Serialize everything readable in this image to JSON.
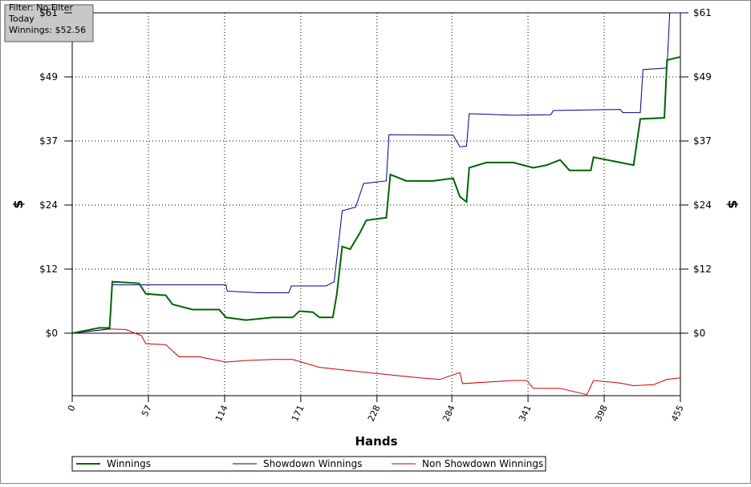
{
  "info": {
    "lines": [
      "Filter: No Filter",
      "Today",
      "Winnings: $52.56"
    ]
  },
  "chart_data": {
    "type": "line",
    "xlabel": "Hands",
    "ylabel": "$",
    "y2label": "$",
    "xlim": [
      0,
      455
    ],
    "xticks": [
      0,
      57,
      114,
      171,
      228,
      284,
      341,
      398,
      455
    ],
    "ylim": [
      -11.9,
      61
    ],
    "yticks": [
      {
        "value": 0,
        "label": "$0"
      },
      {
        "value": 12.2,
        "label": "$12"
      },
      {
        "value": 24.4,
        "label": "$24"
      },
      {
        "value": 36.6,
        "label": "$37"
      },
      {
        "value": 48.8,
        "label": "$49"
      },
      {
        "value": 61,
        "label": "$61"
      }
    ],
    "grid": true,
    "series": [
      {
        "name": "Winnings",
        "color": "#006400",
        "x": [
          0,
          10,
          20,
          28,
          30,
          50,
          55,
          70,
          75,
          90,
          110,
          115,
          130,
          150,
          165,
          170,
          180,
          185,
          195,
          198,
          202,
          208,
          215,
          220,
          235,
          238,
          250,
          270,
          285,
          290,
          295,
          297,
          310,
          330,
          345,
          355,
          365,
          372,
          388,
          390,
          410,
          420,
          425,
          443,
          445,
          455
        ],
        "values": [
          0,
          0.5,
          1,
          1,
          9.8,
          9.5,
          7.5,
          7.2,
          5.5,
          4.5,
          4.5,
          3,
          2.5,
          3,
          3,
          4.2,
          4,
          3,
          3,
          7.5,
          16.5,
          16,
          19,
          21.5,
          22,
          30.2,
          29,
          29,
          29.5,
          26,
          25,
          31.5,
          32.5,
          32.5,
          31.5,
          32,
          33,
          31,
          31,
          33.5,
          32.5,
          32,
          40.8,
          41,
          52,
          52.6
        ]
      },
      {
        "name": "Showdown Winnings",
        "color": "#00008b",
        "x": [
          0,
          28,
          30,
          115,
          116,
          140,
          162,
          164,
          190,
          196,
          202,
          212,
          218,
          235,
          237,
          285,
          290,
          295,
          297,
          330,
          358,
          360,
          410,
          412,
          425,
          427,
          445,
          447,
          455
        ],
        "values": [
          0,
          0.8,
          9.2,
          9.2,
          8,
          7.7,
          7.7,
          9,
          9,
          9.8,
          23.3,
          24,
          28.5,
          29,
          37.8,
          37.7,
          35.5,
          35.6,
          41.8,
          41.5,
          41.6,
          42.4,
          42.6,
          42,
          42,
          50.2,
          50.5,
          61,
          61
        ]
      },
      {
        "name": "Non Showdown Winnings",
        "color": "#cc0000",
        "x": [
          0,
          28,
          40,
          52,
          55,
          70,
          80,
          95,
          115,
          130,
          150,
          165,
          185,
          210,
          240,
          260,
          275,
          290,
          292,
          330,
          340,
          345,
          365,
          385,
          390,
          410,
          420,
          435,
          445,
          455
        ],
        "values": [
          0,
          0.8,
          0.7,
          -0.5,
          -2,
          -2.2,
          -4.5,
          -4.5,
          -5.5,
          -5.2,
          -5,
          -5,
          -6.5,
          -7.2,
          -8,
          -8.5,
          -8.8,
          -7.5,
          -9.6,
          -9,
          -9,
          -10.5,
          -10.5,
          -11.7,
          -9,
          -9.5,
          -10,
          -9.8,
          -8.8,
          -8.5
        ]
      }
    ]
  }
}
